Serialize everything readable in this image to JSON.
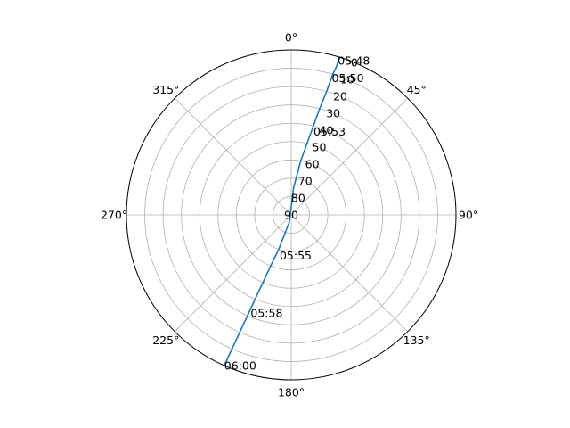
{
  "chart_data": {
    "type": "polar-line",
    "title": "",
    "theta_direction": "clockwise",
    "theta_zero": "north",
    "theta_labels": [
      "0°",
      "45°",
      "90°",
      "135°",
      "180°",
      "225°",
      "270°",
      "315°"
    ],
    "theta_ticks": [
      0,
      45,
      90,
      135,
      180,
      225,
      270,
      315
    ],
    "r_axis": "elevation, inverted (90 at center, 0 at outer edge)",
    "r_ticks": [
      0,
      10,
      20,
      30,
      40,
      50,
      60,
      70,
      80,
      90
    ],
    "r_labels": [
      "0",
      "10",
      "20",
      "30",
      "40",
      "50",
      "60",
      "70",
      "80",
      "90"
    ],
    "r_label_angle_deg": 22.5,
    "grid": true,
    "legend": "none",
    "series": [
      {
        "color": "#1f77b4",
        "azimuth": [
          17,
          17,
          16.5,
          16,
          15,
          14,
          12.5,
          10,
          5,
          195,
          200,
          202,
          203,
          203.5,
          203.8,
          204
        ],
        "elevation": [
          0,
          5,
          10,
          20,
          30,
          40,
          50,
          60,
          75,
          86,
          70,
          60,
          45,
          30,
          15,
          0
        ]
      }
    ],
    "annotations": [
      {
        "text": "05:48",
        "azimuth": 16.8,
        "elevation": 2
      },
      {
        "text": "05:50",
        "azimuth": 16.5,
        "elevation": 12
      },
      {
        "text": "05:53",
        "azimuth": 15,
        "elevation": 43
      },
      {
        "text": "05:55",
        "azimuth": 196,
        "elevation": 67
      },
      {
        "text": "05:58",
        "azimuth": 202.5,
        "elevation": 32
      },
      {
        "text": "06:00",
        "azimuth": 204,
        "elevation": 0
      }
    ]
  }
}
